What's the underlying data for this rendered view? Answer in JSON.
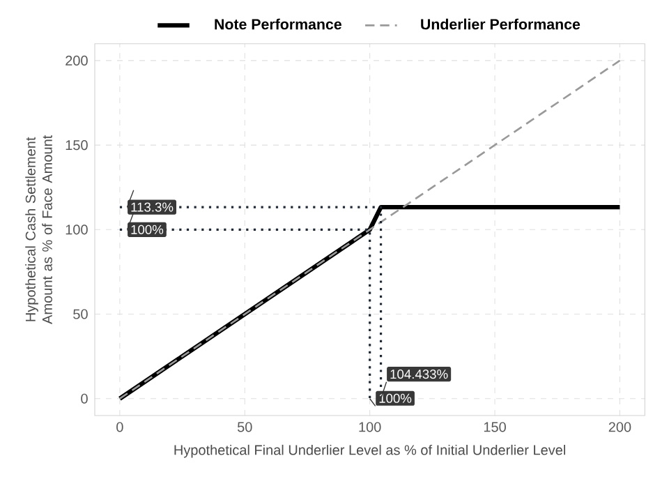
{
  "chart_data": {
    "type": "line",
    "xlabel": "Hypothetical Final Underlier Level as % of Initial Underlier Level",
    "ylabel": "Hypothetical Cash Settlement Amount as % of Face Amount",
    "xlim": [
      -10,
      210
    ],
    "ylim": [
      -10,
      210
    ],
    "xticks": [
      0,
      50,
      100,
      150,
      200
    ],
    "yticks": [
      0,
      50,
      100,
      150,
      200
    ],
    "grid": true,
    "legend": "top",
    "marker": "none",
    "series": [
      {
        "name": "Note Performance",
        "color": "#000000",
        "line_style": "solid",
        "x": [
          0,
          100,
          104.433,
          200
        ],
        "values": [
          0,
          100,
          113.3,
          113.3
        ]
      },
      {
        "name": "Underlier Performance",
        "color": "#999999",
        "line_style": "dashed",
        "x": [
          0,
          200
        ],
        "values": [
          0,
          200
        ]
      },
      {
        "color": "#1f2a36",
        "line_style": "dotted",
        "x": [
          0,
          104.433,
          104.433
        ],
        "values": [
          113.3,
          113.3,
          0
        ]
      },
      {
        "color": "#1f2a36",
        "line_style": "dotted",
        "x": [
          0,
          100,
          100
        ],
        "values": [
          100,
          100,
          0
        ]
      }
    ],
    "annotations": [
      {
        "text": "113.3%",
        "x": 0,
        "y": 113.3
      },
      {
        "text": "100%",
        "x": 0,
        "y": 100
      },
      {
        "text": "100%",
        "x": 100,
        "y": 0
      },
      {
        "text": "104.433%",
        "x": 104.433,
        "y": 0
      }
    ]
  }
}
